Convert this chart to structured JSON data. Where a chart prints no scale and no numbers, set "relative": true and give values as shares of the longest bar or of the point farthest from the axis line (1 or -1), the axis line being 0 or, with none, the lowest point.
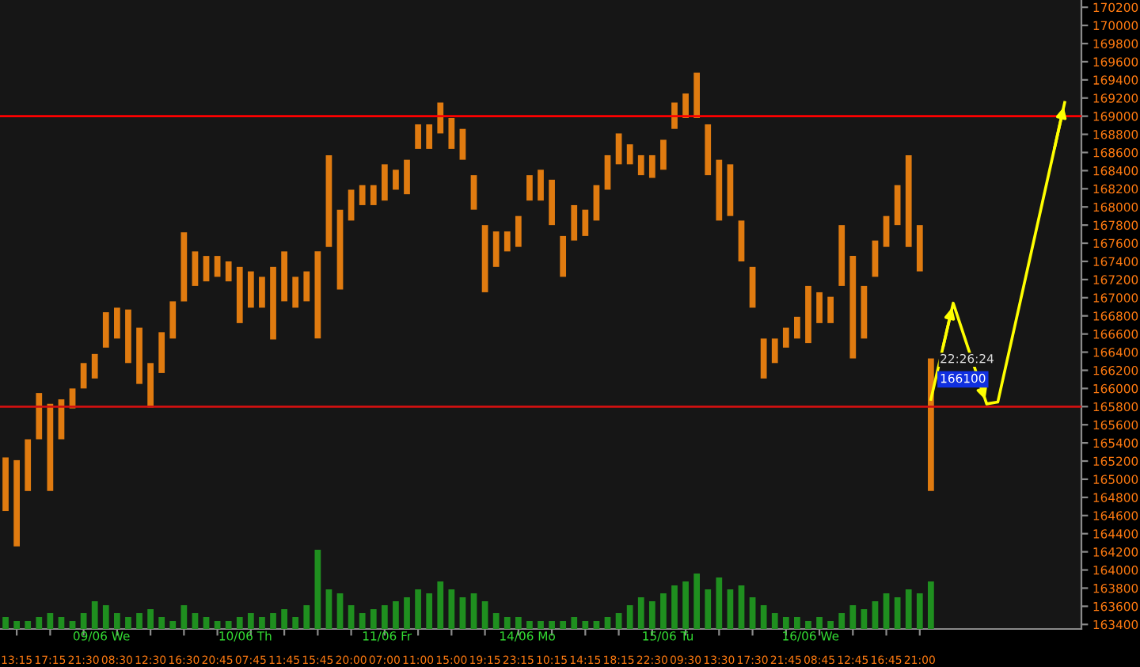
{
  "chart_data": [
    {
      "type": "bar",
      "categories": [
        null,
        "13:15",
        null,
        null,
        "17:15",
        null,
        null,
        "21:30",
        null,
        null,
        "08:30",
        null,
        null,
        "12:30",
        null,
        null,
        "16:30",
        null,
        null,
        "20:45",
        null,
        null,
        "07:45",
        null,
        null,
        "11:45",
        null,
        null,
        "15:45",
        null,
        null,
        "20:00",
        null,
        null,
        "07:00",
        null,
        null,
        "11:00",
        null,
        null,
        "15:00",
        null,
        null,
        "19:15",
        null,
        null,
        "23:15",
        null,
        null,
        "10:15",
        null,
        null,
        "14:15",
        null,
        null,
        "18:15",
        null,
        null,
        "22:30",
        null,
        null,
        "09:30",
        null,
        null,
        "13:30",
        null,
        null,
        "17:30",
        null,
        null,
        "21:45",
        null,
        null,
        "08:45",
        null,
        null,
        "12:45",
        null,
        null,
        "16:45",
        null,
        null,
        "21:00",
        null,
        null,
        null,
        null,
        null,
        null,
        null,
        null,
        null,
        null,
        null,
        null,
        null,
        null
      ],
      "series": [
        {
          "type": "bar",
          "color": "#e07b10",
          "base": [
            164650,
            164260,
            164870,
            165440,
            164870,
            165440,
            165780,
            166000,
            166110,
            166450,
            166550,
            166280,
            166050,
            165790,
            166170,
            166550,
            166960,
            167130,
            167180,
            167230,
            167180,
            166720,
            166890,
            166890,
            166540,
            166960,
            166890,
            166960,
            166550,
            167560,
            167090,
            167850,
            168020,
            168020,
            168070,
            168190,
            168140,
            168640,
            168640,
            168810,
            168640,
            168520,
            167970,
            167060,
            167340,
            167510,
            167560,
            168070,
            168070,
            167800,
            167230,
            167630,
            167680,
            167850,
            168190,
            168470,
            168470,
            168350,
            168320,
            168410,
            168860,
            168980,
            168980,
            168350,
            167850,
            167900,
            167400,
            166890,
            166110,
            166280,
            166450,
            166550,
            166500,
            166720,
            166720,
            167130,
            166330,
            166550,
            167230,
            167560,
            167800,
            167560,
            167290,
            164870,
            null,
            null,
            null,
            null,
            null,
            null,
            null,
            null,
            null,
            null,
            null,
            null,
            null
          ],
          "values": [
            590,
            950,
            570,
            510,
            960,
            440,
            220,
            280,
            270,
            390,
            340,
            590,
            620,
            490,
            450,
            410,
            760,
            380,
            280,
            230,
            220,
            620,
            400,
            340,
            800,
            550,
            340,
            330,
            960,
            1010,
            880,
            340,
            220,
            220,
            400,
            220,
            380,
            270,
            270,
            340,
            340,
            340,
            380,
            740,
            390,
            220,
            340,
            280,
            340,
            500,
            450,
            390,
            290,
            390,
            380,
            340,
            220,
            220,
            250,
            330,
            290,
            270,
            500,
            560,
            670,
            570,
            450,
            450,
            440,
            270,
            220,
            240,
            630,
            340,
            290,
            670,
            1130,
            580,
            400,
            340,
            440,
            1010,
            510,
            1460,
            null,
            null,
            null,
            null,
            null,
            null,
            null,
            null,
            null,
            null,
            null,
            null,
            null
          ]
        },
        {
          "type": "line",
          "color": "#ffff00",
          "values": [
            null,
            null,
            null,
            null,
            null,
            null,
            null,
            null,
            null,
            null,
            null,
            null,
            null,
            null,
            null,
            null,
            null,
            null,
            null,
            null,
            null,
            null,
            null,
            null,
            null,
            null,
            null,
            null,
            null,
            null,
            null,
            null,
            null,
            null,
            null,
            null,
            null,
            null,
            null,
            null,
            null,
            null,
            null,
            null,
            null,
            null,
            null,
            null,
            null,
            null,
            null,
            null,
            null,
            null,
            null,
            null,
            null,
            null,
            null,
            null,
            null,
            null,
            null,
            null,
            null,
            null,
            null,
            null,
            null,
            null,
            null,
            null,
            null,
            null,
            null,
            null,
            null,
            null,
            null,
            null,
            null,
            null,
            null,
            165880,
            166410,
            166940,
            166570,
            166200,
            165830,
            165850,
            166400,
            166950,
            167500,
            168050,
            168600,
            169150,
            null
          ]
        }
      ],
      "ylim": [
        163350,
        170280
      ],
      "yticks": [
        163400,
        163600,
        163800,
        164000,
        164200,
        164400,
        164600,
        164800,
        165000,
        165200,
        165400,
        165600,
        165800,
        166000,
        166200,
        166400,
        166600,
        166800,
        167000,
        167200,
        167400,
        167600,
        167800,
        168000,
        168200,
        168400,
        168600,
        168800,
        169000,
        169200,
        169400,
        169600,
        169800,
        170000,
        170200
      ],
      "ref_lines": [
        {
          "axis": "y",
          "value": 169000,
          "color": "#ff0000"
        },
        {
          "axis": "y",
          "value": 165800,
          "color": "#d01010"
        }
      ],
      "annotations": [
        "09/06 We",
        "10/06 Th",
        "11/06 Fr",
        "14/06 Mo",
        "15/06 Tu",
        "16/06 We",
        "22:26:24",
        {
          "text": "166100",
          "y": 166100
        }
      ]
    },
    {
      "type": "bar",
      "relative": true,
      "color": "#1f8f1f",
      "categories": [
        null,
        null,
        null,
        null,
        null,
        null,
        null,
        null,
        null,
        null,
        null,
        null,
        null,
        null,
        null,
        null,
        null,
        null,
        null,
        null,
        null,
        null,
        null,
        null,
        null,
        null,
        null,
        null,
        null,
        null,
        null,
        null,
        null,
        null,
        null,
        null,
        null,
        null,
        null,
        null,
        null,
        null,
        null,
        null,
        null,
        null,
        null,
        null,
        null,
        null,
        null,
        null,
        null,
        null,
        null,
        null,
        null,
        null,
        null,
        null,
        null,
        null,
        null,
        null,
        null,
        null,
        null,
        null,
        null,
        null,
        null,
        null,
        null,
        null,
        null,
        null,
        null,
        null,
        null,
        null,
        null,
        null,
        null,
        null,
        null,
        null,
        null,
        null,
        null,
        null,
        null,
        null,
        null,
        null,
        null,
        null,
        null
      ],
      "values": [
        0.15,
        0.1,
        0.1,
        0.15,
        0.2,
        0.15,
        0.1,
        0.2,
        0.35,
        0.3,
        0.2,
        0.15,
        0.2,
        0.25,
        0.15,
        0.1,
        0.3,
        0.2,
        0.15,
        0.1,
        0.1,
        0.15,
        0.2,
        0.15,
        0.2,
        0.25,
        0.15,
        0.3,
        1,
        0.5,
        0.45,
        0.3,
        0.2,
        0.25,
        0.3,
        0.35,
        0.4,
        0.5,
        0.45,
        0.6,
        0.5,
        0.4,
        0.45,
        0.35,
        0.2,
        0.15,
        0.15,
        0.1,
        0.1,
        0.1,
        0.1,
        0.15,
        0.1,
        0.1,
        0.15,
        0.2,
        0.3,
        0.4,
        0.35,
        0.45,
        0.55,
        0.6,
        0.7,
        0.5,
        0.65,
        0.5,
        0.55,
        0.4,
        0.3,
        0.2,
        0.15,
        0.15,
        0.1,
        0.15,
        0.1,
        0.2,
        0.3,
        0.25,
        0.35,
        0.45,
        0.4,
        0.5,
        0.45,
        0.6,
        null,
        null,
        null,
        null,
        null,
        null,
        null,
        null,
        null,
        null,
        null,
        null,
        null
      ]
    }
  ]
}
